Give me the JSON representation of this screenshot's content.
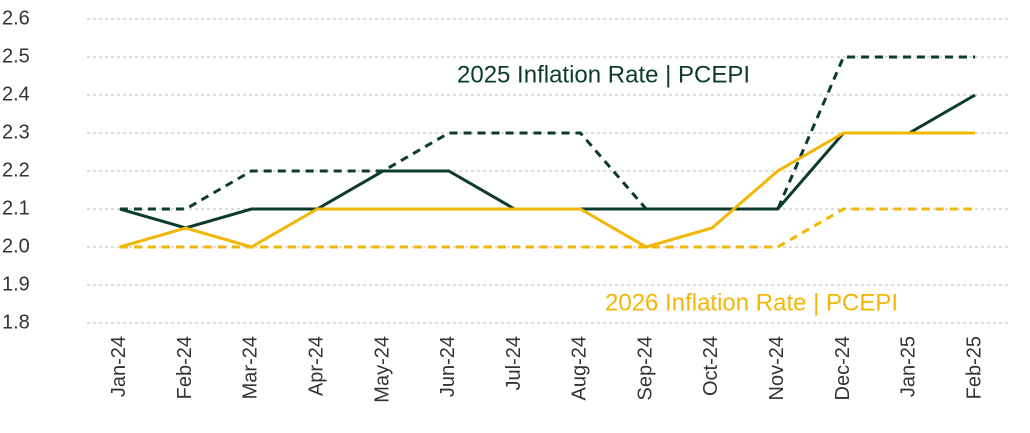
{
  "chart_data": {
    "type": "line",
    "categories": [
      "Jan-24",
      "Feb-24",
      "Mar-24",
      "Apr-24",
      "May-24",
      "Jun-24",
      "Jul-24",
      "Aug-24",
      "Sep-24",
      "Oct-24",
      "Nov-24",
      "Dec-24",
      "Jan-25",
      "Feb-25"
    ],
    "series": [
      {
        "color": "#0b3b2c",
        "style": "solid",
        "values": [
          2.1,
          2.05,
          2.1,
          2.1,
          2.2,
          2.2,
          2.1,
          2.1,
          2.1,
          2.1,
          2.1,
          2.3,
          2.3,
          2.4
        ]
      },
      {
        "color": "#0b3b2c",
        "style": "dashed",
        "values": [
          2.1,
          2.1,
          2.2,
          2.2,
          2.2,
          2.3,
          2.3,
          2.3,
          2.1,
          2.1,
          2.1,
          2.5,
          2.5,
          2.5
        ]
      },
      {
        "color": "#f2b705",
        "style": "solid",
        "values": [
          2.0,
          2.05,
          2.0,
          2.1,
          2.1,
          2.1,
          2.1,
          2.1,
          2.0,
          2.05,
          2.2,
          2.3,
          2.3,
          2.3
        ]
      },
      {
        "color": "#f2b705",
        "style": "dashed",
        "values": [
          2.0,
          2.0,
          2.0,
          2.0,
          2.0,
          2.0,
          2.0,
          2.0,
          2.0,
          2.0,
          2.0,
          2.1,
          2.1,
          2.1
        ]
      }
    ],
    "annotations": [
      {
        "text": "2025 Inflation Rate | PCEPI",
        "color": "#0b3b2c"
      },
      {
        "text": "2026 Inflation Rate | PCEPI",
        "color": "#f2b705"
      }
    ],
    "ylim": [
      1.8,
      2.6
    ],
    "yticks": [
      1.8,
      1.9,
      {
        "value": 2,
        "label": "2.0"
      },
      2.1,
      2.2,
      2.3,
      2.4,
      2.5,
      2.6
    ],
    "grid": true
  }
}
